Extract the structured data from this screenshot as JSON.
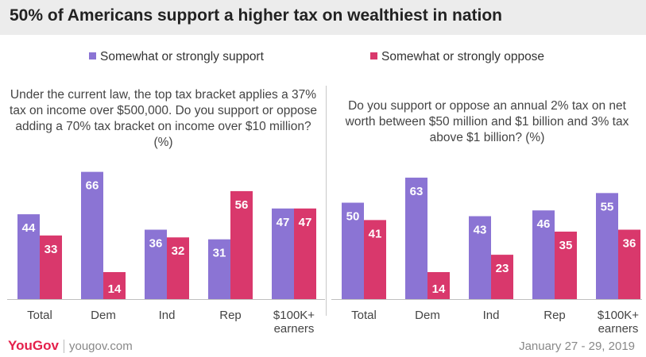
{
  "header": {
    "title": "50% of Americans support a higher tax on wealthiest in nation"
  },
  "legend": {
    "support_label": "Somewhat or strongly support",
    "oppose_label": "Somewhat or strongly oppose"
  },
  "colors": {
    "support": "#8b74d4",
    "oppose": "#d9386c",
    "title_band": "#ececec"
  },
  "footer": {
    "brand_you": "You",
    "brand_gov": "Gov",
    "url": "yougov.com",
    "date": "January 27 - 29, 2019"
  },
  "chart_data": [
    {
      "type": "bar",
      "title": "Under the current law, the top tax bracket applies a 37% tax on income over $500,000. Do you support or oppose adding a 70% tax bracket on income over $10 million? (%)",
      "categories": [
        "Total",
        "Dem",
        "Ind",
        "Rep",
        "$100K+ earners"
      ],
      "series": [
        {
          "name": "Somewhat or strongly support",
          "values": [
            44,
            66,
            36,
            31,
            47
          ]
        },
        {
          "name": "Somewhat or strongly oppose",
          "values": [
            33,
            14,
            32,
            56,
            47
          ]
        }
      ],
      "ylim": [
        0,
        70
      ],
      "grid": false,
      "legend": "top"
    },
    {
      "type": "bar",
      "title": "Do you support or oppose an annual 2% tax on net worth between $50 million and $1 billion and 3% tax above $1 billion? (%)",
      "categories": [
        "Total",
        "Dem",
        "Ind",
        "Rep",
        "$100K+ earners"
      ],
      "series": [
        {
          "name": "Somewhat or strongly support",
          "values": [
            50,
            63,
            43,
            46,
            55
          ]
        },
        {
          "name": "Somewhat or strongly oppose",
          "values": [
            41,
            14,
            23,
            35,
            36
          ]
        }
      ],
      "ylim": [
        0,
        70
      ],
      "grid": false,
      "legend": "top"
    }
  ]
}
